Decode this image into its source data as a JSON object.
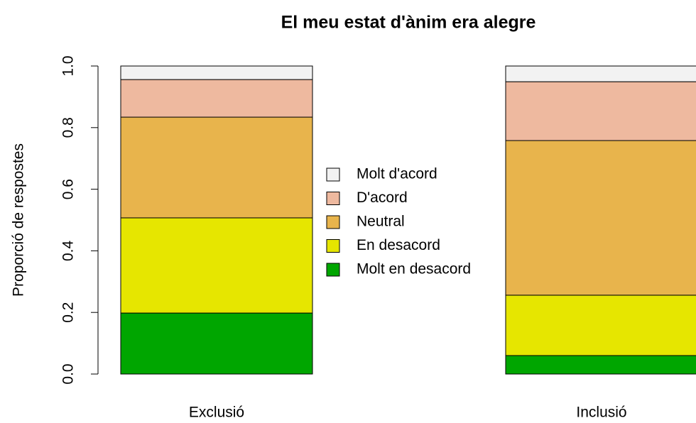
{
  "chart_data": {
    "type": "stacked_bar",
    "title": "El meu estat d'ànim era alegre",
    "y_label": "Proporció de respostes",
    "categories": [
      "Exclusió",
      "Inclusió"
    ],
    "series": [
      {
        "name": "Molt en desacord",
        "color": "#00a600",
        "values": [
          0.198,
          0.06
        ]
      },
      {
        "name": "En desacord",
        "color": "#e6e600",
        "values": [
          0.309,
          0.196
        ]
      },
      {
        "name": "Neutral",
        "color": "#e8b44c",
        "values": [
          0.327,
          0.502
        ]
      },
      {
        "name": "D'acord",
        "color": "#eeb99f",
        "values": [
          0.122,
          0.191
        ]
      },
      {
        "name": "Molt d'acord",
        "color": "#f2f2f2",
        "values": [
          0.044,
          0.051
        ]
      }
    ],
    "ylim": [
      0,
      1
    ],
    "yticks": [
      {
        "value": 0,
        "label": "0.0"
      },
      {
        "value": 0.2,
        "label": "0.2"
      },
      {
        "value": 0.4,
        "label": "0.4"
      },
      {
        "value": 0.6,
        "label": "0.6"
      },
      {
        "value": 0.8,
        "label": "0.8"
      },
      {
        "value": 1,
        "label": "1.0"
      }
    ]
  }
}
